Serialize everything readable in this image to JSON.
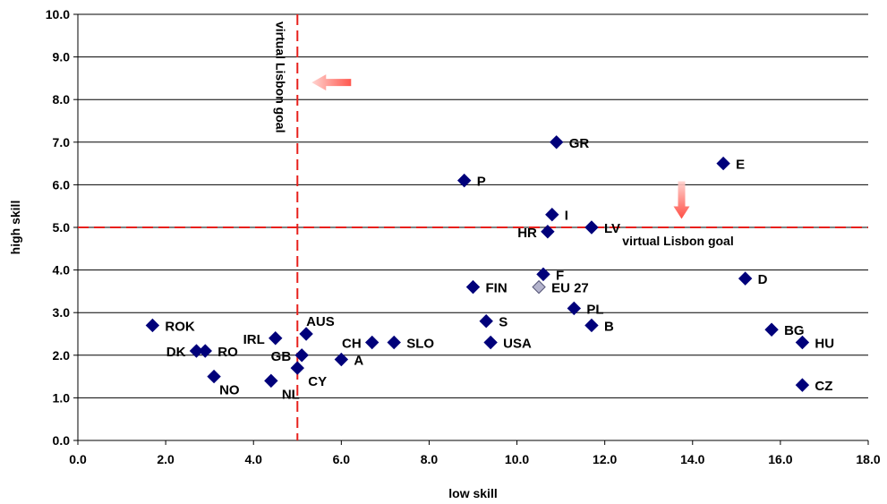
{
  "chart_data": {
    "type": "scatter",
    "xlabel": "low skill",
    "ylabel": "high skill",
    "xlim": [
      0,
      18
    ],
    "ylim": [
      0,
      10
    ],
    "x_ticks": [
      "0.0",
      "2.0",
      "4.0",
      "6.0",
      "8.0",
      "10.0",
      "12.0",
      "14.0",
      "16.0",
      "18.0"
    ],
    "y_ticks": [
      "0.0",
      "1.0",
      "2.0",
      "3.0",
      "4.0",
      "5.0",
      "6.0",
      "7.0",
      "8.0",
      "9.0",
      "10.0"
    ],
    "grid": "horizontal",
    "marker_color": "#00007a",
    "highlight_color": "#b3b3cc",
    "goal_color": "#e8201c",
    "points": [
      {
        "label": "ROK",
        "x": 1.7,
        "y": 2.7,
        "side": "right"
      },
      {
        "label": "DK",
        "x": 2.7,
        "y": 2.1,
        "side": "left"
      },
      {
        "label": "RO",
        "x": 2.9,
        "y": 2.1,
        "side": "right"
      },
      {
        "label": "NO",
        "x": 3.1,
        "y": 1.5,
        "side": "below"
      },
      {
        "label": "IRL",
        "x": 4.5,
        "y": 2.4,
        "side": "left"
      },
      {
        "label": "NL",
        "x": 4.4,
        "y": 1.4,
        "side": "belowright"
      },
      {
        "label": "AUS",
        "x": 5.2,
        "y": 2.5,
        "side": "above"
      },
      {
        "label": "GB",
        "x": 5.1,
        "y": 2.0,
        "side": "left"
      },
      {
        "label": "CY",
        "x": 5.0,
        "y": 1.7,
        "side": "belowright"
      },
      {
        "label": "A",
        "x": 6.0,
        "y": 1.9,
        "side": "right"
      },
      {
        "label": "CH",
        "x": 6.7,
        "y": 2.3,
        "side": "left"
      },
      {
        "label": "SLO",
        "x": 7.2,
        "y": 2.3,
        "side": "right"
      },
      {
        "label": "P",
        "x": 8.8,
        "y": 6.1,
        "side": "right"
      },
      {
        "label": "FIN",
        "x": 9.0,
        "y": 3.6,
        "side": "right"
      },
      {
        "label": "S",
        "x": 9.3,
        "y": 2.8,
        "side": "right"
      },
      {
        "label": "USA",
        "x": 9.4,
        "y": 2.3,
        "side": "right"
      },
      {
        "label": "EU 27",
        "x": 10.5,
        "y": 3.6,
        "side": "right",
        "highlight": true
      },
      {
        "label": "F",
        "x": 10.6,
        "y": 3.9,
        "side": "right"
      },
      {
        "label": "HR",
        "x": 10.7,
        "y": 4.9,
        "side": "left"
      },
      {
        "label": "I",
        "x": 10.8,
        "y": 5.3,
        "side": "right"
      },
      {
        "label": "GR",
        "x": 10.9,
        "y": 7.0,
        "side": "right"
      },
      {
        "label": "PL",
        "x": 11.3,
        "y": 3.1,
        "side": "right"
      },
      {
        "label": "LV",
        "x": 11.7,
        "y": 5.0,
        "side": "right"
      },
      {
        "label": "B",
        "x": 11.7,
        "y": 2.7,
        "side": "right"
      },
      {
        "label": "E",
        "x": 14.7,
        "y": 6.5,
        "side": "right"
      },
      {
        "label": "D",
        "x": 15.2,
        "y": 3.8,
        "side": "right"
      },
      {
        "label": "BG",
        "x": 15.8,
        "y": 2.6,
        "side": "right"
      },
      {
        "label": "HU",
        "x": 16.5,
        "y": 2.3,
        "side": "right"
      },
      {
        "label": "CZ",
        "x": 16.5,
        "y": 1.3,
        "side": "right"
      }
    ],
    "goal_lines": [
      {
        "axis": "x",
        "value": 5.0,
        "label": "virtual Lisbon goal",
        "arrow": "left"
      },
      {
        "axis": "y",
        "value": 5.0,
        "label": "virtual Lisbon goal",
        "arrow": "down"
      }
    ]
  }
}
